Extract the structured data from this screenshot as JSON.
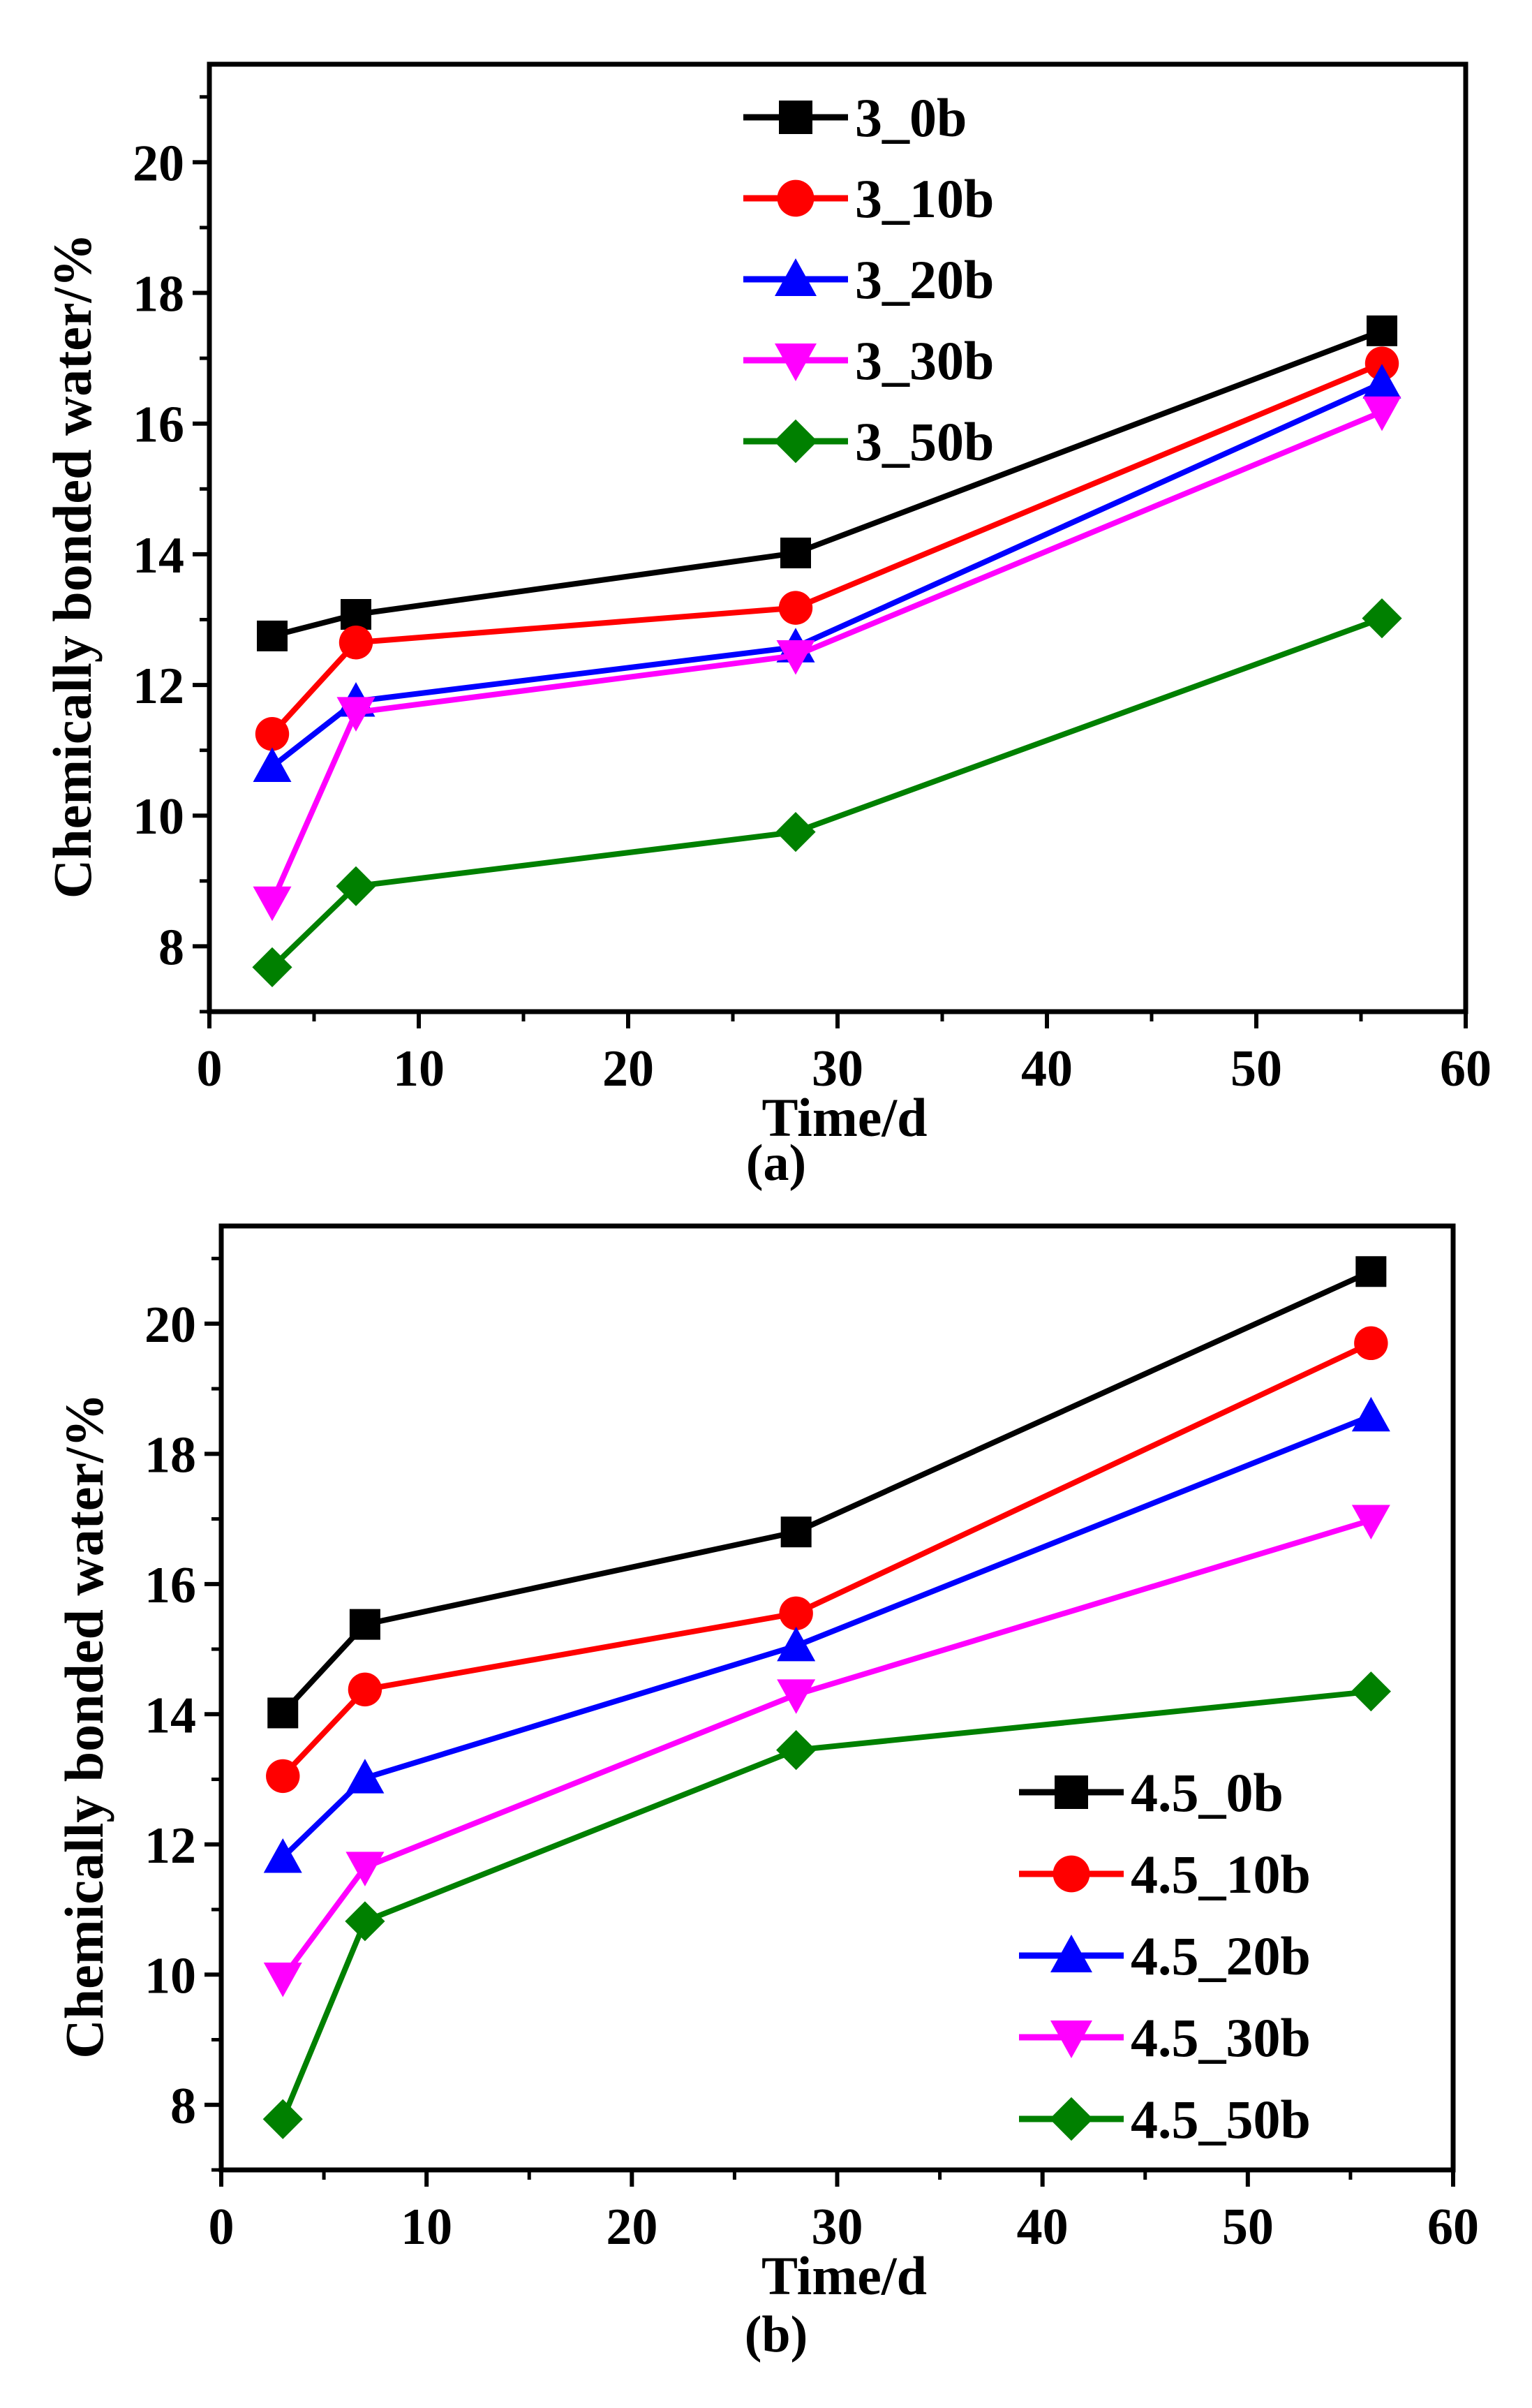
{
  "chart_data": [
    {
      "type": "line",
      "caption": "(a)",
      "caption_letter": "a",
      "xlabel": "Time/d",
      "ylabel": "Chemically bonded water/%",
      "xlim": [
        0,
        60
      ],
      "ylim": [
        7,
        21.5
      ],
      "xticks": [
        0,
        10,
        20,
        30,
        40,
        50,
        60
      ],
      "yticks": [
        8,
        10,
        12,
        14,
        16,
        18,
        20
      ],
      "legend_position": "top-center",
      "x": [
        3,
        7,
        28,
        56
      ],
      "series": [
        {
          "name": "3_0b",
          "color": "#000000",
          "marker": "square",
          "values": [
            12.75,
            13.08,
            14.02,
            17.42
          ]
        },
        {
          "name": "3_10b",
          "color": "#ff0000",
          "marker": "circle",
          "values": [
            11.25,
            12.65,
            13.18,
            16.92
          ]
        },
        {
          "name": "3_20b",
          "color": "#0000ff",
          "marker": "triangle-up",
          "values": [
            10.75,
            11.75,
            12.58,
            16.62
          ]
        },
        {
          "name": "3_30b",
          "color": "#ff00ff",
          "marker": "triangle-down",
          "values": [
            8.68,
            11.58,
            12.45,
            16.18
          ]
        },
        {
          "name": "3_50b",
          "color": "#008000",
          "marker": "diamond",
          "values": [
            7.68,
            8.92,
            9.75,
            13.02
          ]
        }
      ]
    },
    {
      "type": "line",
      "caption": "(b)",
      "caption_letter": "b",
      "xlabel": "Time/d",
      "ylabel": "Chemically bonded water/%",
      "xlim": [
        0,
        60
      ],
      "ylim": [
        7,
        21.5
      ],
      "xticks": [
        0,
        10,
        20,
        30,
        40,
        50,
        60
      ],
      "yticks": [
        8,
        10,
        12,
        14,
        16,
        18,
        20
      ],
      "legend_position": "bottom-right",
      "x": [
        3,
        7,
        28,
        56
      ],
      "series": [
        {
          "name": "4.5_0b",
          "color": "#000000",
          "marker": "square",
          "values": [
            14.02,
            15.38,
            16.8,
            20.8
          ]
        },
        {
          "name": "4.5_10b",
          "color": "#ff0000",
          "marker": "circle",
          "values": [
            13.05,
            14.38,
            15.55,
            19.7
          ]
        },
        {
          "name": "4.5_20b",
          "color": "#0000ff",
          "marker": "triangle-up",
          "values": [
            11.8,
            13.02,
            15.05,
            18.58
          ]
        },
        {
          "name": "4.5_30b",
          "color": "#ff00ff",
          "marker": "triangle-down",
          "values": [
            9.95,
            11.65,
            14.3,
            16.98
          ]
        },
        {
          "name": "4.5_50b",
          "color": "#008000",
          "marker": "diamond",
          "values": [
            7.78,
            10.82,
            13.45,
            14.35
          ]
        }
      ]
    }
  ]
}
